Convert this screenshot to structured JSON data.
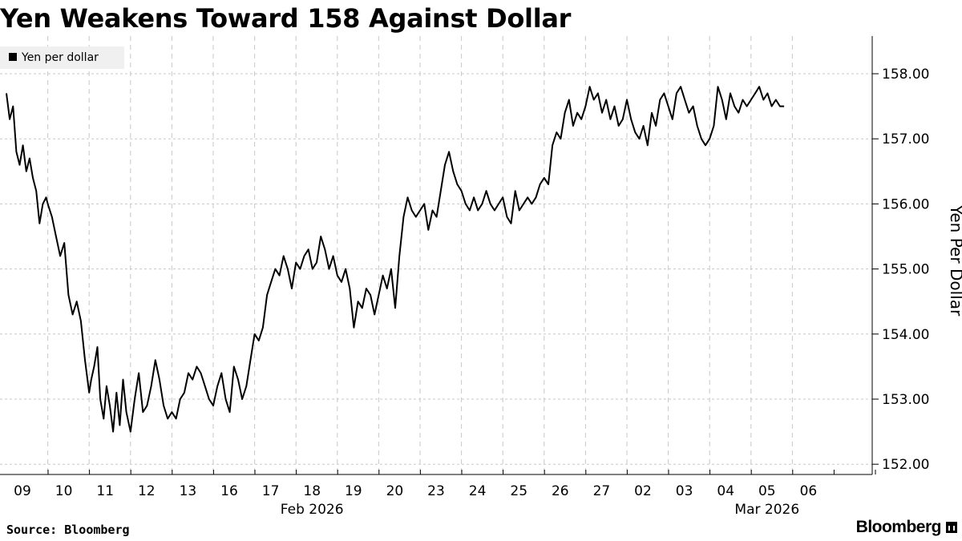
{
  "title": "Yen Weakens Toward 158 Against Dollar",
  "source": "Source: Bloomberg",
  "logo": "Bloomberg",
  "colors": {
    "line": "#000000",
    "grid": "#c8c8c8",
    "legend_bg": "#f0f0f0"
  },
  "chart_data": {
    "type": "line",
    "title": "Yen Weakens Toward 158 Against Dollar",
    "ylabel": "Yen Per Dollar",
    "xlabel": "",
    "ylim": [
      151.95,
      158.25
    ],
    "yticks": [
      152,
      153,
      154,
      155,
      156,
      157,
      158
    ],
    "ytick_labels": [
      "152.00",
      "153.00",
      "154.00",
      "155.00",
      "156.00",
      "157.00",
      "158.00"
    ],
    "y_axis_side": "right",
    "grid": true,
    "legend": {
      "position": "top-left",
      "entries": [
        "Yen per dollar"
      ]
    },
    "x_ticks": [
      "09",
      "10",
      "11",
      "12",
      "13",
      "16",
      "17",
      "18",
      "19",
      "20",
      "23",
      "24",
      "25",
      "26",
      "27",
      "02",
      "03",
      "04",
      "05",
      "06"
    ],
    "x_month_labels": [
      {
        "label": "Feb 2026",
        "after_tick": "16"
      },
      {
        "label": "Mar 2026",
        "after_tick": "03"
      }
    ],
    "series": [
      {
        "name": "Yen per dollar",
        "t": [
          0,
          0.08,
          0.16,
          0.24,
          0.32,
          0.4,
          0.48,
          0.56,
          0.64,
          0.72,
          0.8,
          0.88,
          0.96,
          1.0,
          1.1,
          1.2,
          1.3,
          1.4,
          1.5,
          1.6,
          1.7,
          1.8,
          1.9,
          2.0,
          2.05,
          2.12,
          2.2,
          2.27,
          2.35,
          2.42,
          2.5,
          2.58,
          2.66,
          2.74,
          2.82,
          2.9,
          3.0,
          3.1,
          3.2,
          3.3,
          3.4,
          3.5,
          3.6,
          3.7,
          3.8,
          3.9,
          4.0,
          4.1,
          4.2,
          4.3,
          4.4,
          4.5,
          4.6,
          4.7,
          4.8,
          4.9,
          5.0,
          5.1,
          5.2,
          5.3,
          5.4,
          5.5,
          5.6,
          5.7,
          5.8,
          5.9,
          6.0,
          6.1,
          6.2,
          6.3,
          6.4,
          6.5,
          6.6,
          6.7,
          6.8,
          6.9,
          7.0,
          7.1,
          7.2,
          7.3,
          7.4,
          7.5,
          7.6,
          7.7,
          7.8,
          7.9,
          8.0,
          8.1,
          8.2,
          8.3,
          8.4,
          8.5,
          8.6,
          8.7,
          8.8,
          8.9,
          9.0,
          9.1,
          9.2,
          9.3,
          9.4,
          9.5,
          9.6,
          9.7,
          9.8,
          9.9,
          10.0,
          10.1,
          10.2,
          10.3,
          10.4,
          10.5,
          10.6,
          10.7,
          10.8,
          10.9,
          11.0,
          11.1,
          11.2,
          11.3,
          11.4,
          11.5,
          11.6,
          11.7,
          11.8,
          11.9,
          12.0,
          12.1,
          12.2,
          12.3,
          12.4,
          12.5,
          12.6,
          12.7,
          12.8,
          12.9,
          13.0,
          13.1,
          13.2,
          13.3,
          13.4,
          13.5,
          13.6,
          13.7,
          13.8,
          13.9,
          14.0,
          14.1,
          14.2,
          14.3,
          14.4,
          14.5,
          14.6,
          14.7,
          14.8,
          14.9,
          15.0,
          15.1,
          15.2,
          15.3,
          15.4,
          15.5,
          15.6,
          15.7,
          15.8,
          15.9,
          16.0,
          16.1,
          16.2,
          16.3,
          16.4,
          16.5,
          16.6,
          16.7,
          16.8,
          16.9,
          17.0,
          17.1,
          17.2,
          17.3,
          17.4,
          17.5,
          17.6,
          17.7,
          17.8,
          17.9,
          18.0,
          18.1,
          18.2,
          18.3,
          18.4,
          18.5,
          18.6,
          18.7,
          18.8
        ],
        "values": [
          157.7,
          157.3,
          157.5,
          156.8,
          156.6,
          156.9,
          156.5,
          156.7,
          156.4,
          156.2,
          155.7,
          156.0,
          156.1,
          156.0,
          155.8,
          155.5,
          155.2,
          155.4,
          154.6,
          154.3,
          154.5,
          154.2,
          153.6,
          153.1,
          153.3,
          153.5,
          153.8,
          153.0,
          152.7,
          153.2,
          152.9,
          152.5,
          153.1,
          152.6,
          153.3,
          152.8,
          152.5,
          153.0,
          153.4,
          152.8,
          152.9,
          153.2,
          153.6,
          153.3,
          152.9,
          152.7,
          152.8,
          152.7,
          153.0,
          153.1,
          153.4,
          153.3,
          153.5,
          153.4,
          153.2,
          153.0,
          152.9,
          153.2,
          153.4,
          153.0,
          152.8,
          153.5,
          153.3,
          153.0,
          153.2,
          153.6,
          154.0,
          153.9,
          154.1,
          154.6,
          154.8,
          155.0,
          154.9,
          155.2,
          155.0,
          154.7,
          155.1,
          155.0,
          155.2,
          155.3,
          155.0,
          155.1,
          155.5,
          155.3,
          155.0,
          155.2,
          154.9,
          154.8,
          155.0,
          154.7,
          154.1,
          154.5,
          154.4,
          154.7,
          154.6,
          154.3,
          154.6,
          154.9,
          154.7,
          155.0,
          154.4,
          155.2,
          155.8,
          156.1,
          155.9,
          155.8,
          155.9,
          156.0,
          155.6,
          155.9,
          155.8,
          156.2,
          156.6,
          156.8,
          156.5,
          156.3,
          156.2,
          156.0,
          155.9,
          156.1,
          155.9,
          156.0,
          156.2,
          156.0,
          155.9,
          156.0,
          156.1,
          155.8,
          155.7,
          156.2,
          155.9,
          156.0,
          156.1,
          156.0,
          156.1,
          156.3,
          156.4,
          156.3,
          156.9,
          157.1,
          157.0,
          157.4,
          157.6,
          157.2,
          157.4,
          157.3,
          157.5,
          157.8,
          157.6,
          157.7,
          157.4,
          157.6,
          157.3,
          157.5,
          157.2,
          157.3,
          157.6,
          157.3,
          157.1,
          157.0,
          157.2,
          156.9,
          157.4,
          157.2,
          157.6,
          157.7,
          157.5,
          157.3,
          157.7,
          157.8,
          157.6,
          157.4,
          157.5,
          157.2,
          157.0,
          156.9,
          157.0,
          157.2,
          157.8,
          157.6,
          157.3,
          157.7,
          157.5,
          157.4,
          157.6,
          157.5,
          157.6,
          157.7,
          157.8,
          157.6,
          157.7,
          157.5,
          157.6,
          157.5,
          157.5
        ]
      }
    ]
  }
}
